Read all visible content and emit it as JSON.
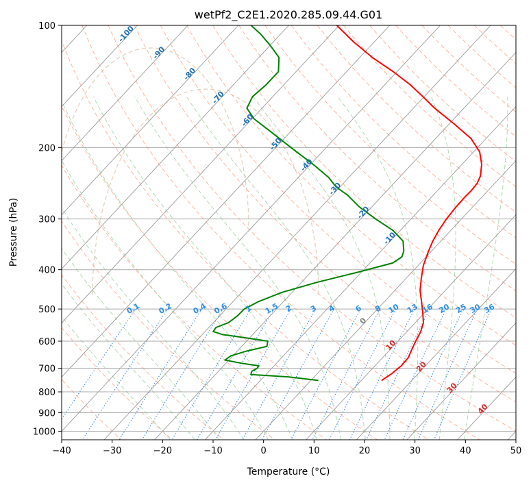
{
  "chart_data": {
    "type": "line",
    "subtype": "skew-t log-p diagram",
    "title": "wetPf2_C2E1.2020.285.09.44.G01",
    "xlabel": "Temperature (°C)",
    "ylabel": "Pressure (hPa)",
    "xlim": [
      -40,
      50
    ],
    "ylim": [
      1050,
      100
    ],
    "yscale": "log",
    "skew_deg_per_decade": 75,
    "x_ticks": [
      "−40",
      "−30",
      "−20",
      "−10",
      "0",
      "10",
      "20",
      "30",
      "40",
      "50"
    ],
    "x_tick_values": [
      -40,
      -30,
      -20,
      -10,
      0,
      10,
      20,
      30,
      40,
      50
    ],
    "y_ticks": [
      "100",
      "200",
      "300",
      "400",
      "500",
      "600",
      "700",
      "800",
      "900",
      "1000"
    ],
    "y_tick_values": [
      100,
      200,
      300,
      400,
      500,
      600,
      700,
      800,
      900,
      1000
    ],
    "grid": true,
    "series": [
      {
        "color": "#ff0000",
        "points": [
          [
            750,
            14.0
          ],
          [
            720,
            14.8
          ],
          [
            690,
            15.2
          ],
          [
            660,
            15.1
          ],
          [
            630,
            14.3
          ],
          [
            600,
            13.5
          ],
          [
            570,
            12.8
          ],
          [
            540,
            11.6
          ],
          [
            510,
            9.6
          ],
          [
            480,
            7.4
          ],
          [
            450,
            5.0
          ],
          [
            420,
            3.0
          ],
          [
            390,
            1.0
          ],
          [
            360,
            -0.6
          ],
          [
            340,
            -1.6
          ],
          [
            320,
            -2.4
          ],
          [
            300,
            -3.0
          ],
          [
            280,
            -3.3
          ],
          [
            265,
            -3.4
          ],
          [
            255,
            -3.3
          ],
          [
            245,
            -3.5
          ],
          [
            235,
            -4.2
          ],
          [
            220,
            -6.1
          ],
          [
            205,
            -8.8
          ],
          [
            190,
            -13.0
          ],
          [
            175,
            -19.0
          ],
          [
            160,
            -25.8
          ],
          [
            150,
            -30.2
          ],
          [
            140,
            -35.0
          ],
          [
            130,
            -40.8
          ],
          [
            120,
            -47.5
          ],
          [
            110,
            -54.0
          ],
          [
            100,
            -60.5
          ]
        ]
      },
      {
        "color": "#008000",
        "points": [
          [
            750,
            1.5
          ],
          [
            735,
            -5.0
          ],
          [
            725,
            -13.0
          ],
          [
            712,
            -13.4
          ],
          [
            700,
            -12.9
          ],
          [
            690,
            -13.0
          ],
          [
            680,
            -17.0
          ],
          [
            668,
            -20.8
          ],
          [
            652,
            -20.4
          ],
          [
            635,
            -18.2
          ],
          [
            618,
            -15.0
          ],
          [
            600,
            -15.8
          ],
          [
            588,
            -21.2
          ],
          [
            578,
            -26.0
          ],
          [
            568,
            -28.4
          ],
          [
            555,
            -28.6
          ],
          [
            540,
            -27.0
          ],
          [
            520,
            -26.5
          ],
          [
            500,
            -26.4
          ],
          [
            480,
            -25.0
          ],
          [
            455,
            -22.0
          ],
          [
            430,
            -17.0
          ],
          [
            405,
            -10.5
          ],
          [
            385,
            -5.5
          ],
          [
            372,
            -4.8
          ],
          [
            360,
            -5.5
          ],
          [
            340,
            -7.5
          ],
          [
            320,
            -11.5
          ],
          [
            300,
            -17.0
          ],
          [
            280,
            -22.5
          ],
          [
            262,
            -27.0
          ],
          [
            250,
            -30.8
          ],
          [
            237,
            -34.0
          ],
          [
            220,
            -39.5
          ],
          [
            200,
            -47.0
          ],
          [
            185,
            -53.0
          ],
          [
            170,
            -59.6
          ],
          [
            160,
            -63.0
          ],
          [
            150,
            -64.0
          ],
          [
            140,
            -63.5
          ],
          [
            130,
            -63.5
          ],
          [
            120,
            -66.0
          ],
          [
            112,
            -70.0
          ],
          [
            105,
            -74.0
          ],
          [
            100,
            -77.5
          ]
        ]
      }
    ],
    "isotherm_labels": [
      "-100",
      "-90",
      "-80",
      "-70",
      "-60",
      "-50",
      "-40",
      "-30",
      "-20",
      "-10"
    ],
    "isotherm_label_values": [
      -100,
      -90,
      -80,
      -70,
      -60,
      -50,
      -40,
      -30,
      -20,
      -10
    ],
    "mixing_ratio_labels": [
      "0.1",
      "0.2",
      "0.4",
      "0.6",
      "1",
      "1.5",
      "2",
      "3",
      "4",
      "6",
      "8",
      "10",
      "13",
      "16",
      "20",
      "25",
      "30",
      "36"
    ],
    "mixing_ratio_values": [
      0.1,
      0.2,
      0.4,
      0.6,
      1,
      1.5,
      2,
      3,
      4,
      6,
      8,
      10,
      13,
      16,
      20,
      25,
      30,
      36
    ],
    "freezing_level_label": "0",
    "warm_isotherm_labels": [
      "10",
      "20",
      "30",
      "40"
    ],
    "warm_isotherm_values": [
      10,
      20,
      30,
      40
    ],
    "colors": {
      "temperature": "#ff0000",
      "dewpoint": "#008000",
      "dry_adiabat": "#ff9a7a",
      "moist_adiabat": "#9fd39f",
      "mixing_ratio": "#3b8de0",
      "isotherm": "#999999",
      "isobar": "#aaaaaa",
      "isotherm_label": "#1f6fb5",
      "mixing_label": "#2a8ee8",
      "warm_label": "#d62728",
      "freezing_label": "#808080",
      "tan_adiabat": "#d8b896"
    }
  }
}
